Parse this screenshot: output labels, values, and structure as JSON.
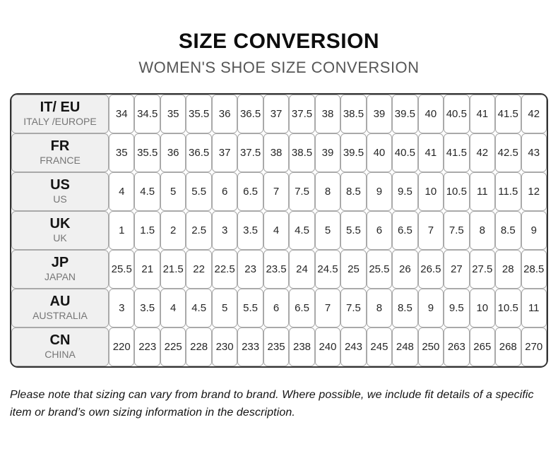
{
  "page": {
    "title": "SIZE CONVERSION",
    "subtitle": "WOMEN'S SHOE SIZE CONVERSION",
    "footnote": "Please note that sizing can vary from brand to brand. Where possible, we include fit details of a specific item or brand’s own sizing information in the description."
  },
  "colors": {
    "title_text": "#0d0d0d",
    "subtitle_text": "#565656",
    "table_outer_border": "#333333",
    "cell_border": "#a9a9a9",
    "header_cell_bg": "#f0f0f0",
    "header_sub_text": "#767676",
    "value_text": "#262626",
    "page_bg": "#ffffff"
  },
  "table": {
    "column_count": 17,
    "rows": [
      {
        "code": "IT/ EU",
        "region": "ITALY /EUROPE",
        "values": [
          "34",
          "34.5",
          "35",
          "35.5",
          "36",
          "36.5",
          "37",
          "37.5",
          "38",
          "38.5",
          "39",
          "39.5",
          "40",
          "40.5",
          "41",
          "41.5",
          "42"
        ]
      },
      {
        "code": "FR",
        "region": "FRANCE",
        "values": [
          "35",
          "35.5",
          "36",
          "36.5",
          "37",
          "37.5",
          "38",
          "38.5",
          "39",
          "39.5",
          "40",
          "40.5",
          "41",
          "41.5",
          "42",
          "42.5",
          "43"
        ]
      },
      {
        "code": "US",
        "region": "US",
        "values": [
          "4",
          "4.5",
          "5",
          "5.5",
          "6",
          "6.5",
          "7",
          "7.5",
          "8",
          "8.5",
          "9",
          "9.5",
          "10",
          "10.5",
          "11",
          "11.5",
          "12"
        ]
      },
      {
        "code": "UK",
        "region": "UK",
        "values": [
          "1",
          "1.5",
          "2",
          "2.5",
          "3",
          "3.5",
          "4",
          "4.5",
          "5",
          "5.5",
          "6",
          "6.5",
          "7",
          "7.5",
          "8",
          "8.5",
          "9"
        ]
      },
      {
        "code": "JP",
        "region": "JAPAN",
        "values": [
          "25.5",
          "21",
          "21.5",
          "22",
          "22.5",
          "23",
          "23.5",
          "24",
          "24.5",
          "25",
          "25.5",
          "26",
          "26.5",
          "27",
          "27.5",
          "28",
          "28.5"
        ]
      },
      {
        "code": "AU",
        "region": "AUSTRALIA",
        "values": [
          "3",
          "3.5",
          "4",
          "4.5",
          "5",
          "5.5",
          "6",
          "6.5",
          "7",
          "7.5",
          "8",
          "8.5",
          "9",
          "9.5",
          "10",
          "10.5",
          "11"
        ]
      },
      {
        "code": "CN",
        "region": "CHINA",
        "values": [
          "220",
          "223",
          "225",
          "228",
          "230",
          "233",
          "235",
          "238",
          "240",
          "243",
          "245",
          "248",
          "250",
          "263",
          "265",
          "268",
          "270"
        ]
      }
    ]
  }
}
